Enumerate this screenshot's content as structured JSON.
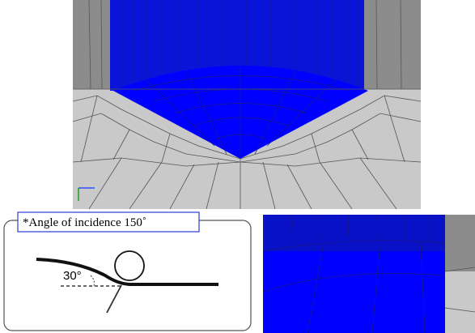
{
  "figure": {
    "label": "*Angle of incidence 150˚",
    "angle_label": "30°"
  }
}
